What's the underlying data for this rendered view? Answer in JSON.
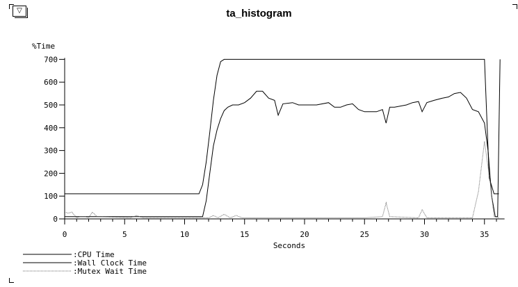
{
  "window": {
    "menu_glyph": "▽",
    "title": "ta_histogram"
  },
  "chart_data": {
    "type": "line",
    "title": "ta_histogram",
    "ylabel": "%Time",
    "xlabel": "Seconds",
    "xlim": [
      0,
      36.5
    ],
    "ylim": [
      0,
      700
    ],
    "xticks": [
      0,
      5,
      10,
      15,
      20,
      25,
      30,
      35
    ],
    "yticks": [
      0,
      100,
      200,
      300,
      400,
      500,
      600,
      700
    ],
    "grid": false,
    "legend_position": "bottom-left",
    "series": [
      {
        "name": ":CPU Time",
        "style": "solid",
        "color": "#000000",
        "x": [
          0,
          11.2,
          11.5,
          11.8,
          12.1,
          12.4,
          12.7,
          13.0,
          13.3,
          35.0,
          35.4,
          35.8,
          36.2
        ],
        "y": [
          110,
          110,
          150,
          250,
          380,
          520,
          630,
          690,
          700,
          700,
          180,
          110,
          110
        ]
      },
      {
        "name": ":Wall Clock Time",
        "style": "solid",
        "color": "#000000",
        "x": [
          0,
          11.5,
          11.8,
          12.1,
          12.4,
          12.7,
          13.0,
          13.3,
          13.6,
          14.0,
          14.5,
          15.0,
          15.5,
          16.0,
          16.5,
          17.0,
          17.5,
          17.8,
          18.2,
          19.0,
          19.5,
          20.0,
          21.0,
          22.0,
          22.5,
          23.0,
          23.5,
          24.0,
          24.5,
          25.0,
          26.0,
          26.5,
          26.8,
          27.1,
          27.5,
          28.5,
          29.0,
          29.5,
          29.8,
          30.2,
          30.8,
          31.5,
          32.0,
          32.5,
          33.0,
          33.5,
          34.0,
          34.5,
          35.0,
          35.3,
          35.6,
          35.9,
          36.1,
          36.3
        ],
        "y": [
          10,
          10,
          80,
          200,
          320,
          390,
          440,
          475,
          490,
          500,
          500,
          510,
          530,
          560,
          560,
          530,
          520,
          455,
          505,
          510,
          500,
          500,
          500,
          510,
          490,
          490,
          500,
          505,
          480,
          470,
          470,
          480,
          420,
          490,
          490,
          500,
          510,
          515,
          470,
          510,
          520,
          530,
          535,
          550,
          555,
          530,
          480,
          470,
          420,
          300,
          100,
          10,
          10,
          700
        ]
      },
      {
        "name": ":Mutex Wait Time",
        "style": "dotted",
        "color": "#666666",
        "x": [
          0,
          0.3,
          0.6,
          1.0,
          1.3,
          1.7,
          2.0,
          2.3,
          2.7,
          5.5,
          6.0,
          6.5,
          11.5,
          12.0,
          12.4,
          12.8,
          13.3,
          13.8,
          14.3,
          14.8,
          15.3,
          20.0,
          25.0,
          26.5,
          26.8,
          27.1,
          29.5,
          29.8,
          30.2,
          34.0,
          34.5,
          35.0,
          35.5,
          35.8,
          36.2
        ],
        "y": [
          30,
          25,
          30,
          5,
          10,
          10,
          5,
          30,
          10,
          5,
          15,
          5,
          5,
          5,
          15,
          5,
          20,
          5,
          15,
          5,
          5,
          5,
          5,
          10,
          70,
          10,
          5,
          40,
          5,
          5,
          120,
          340,
          150,
          10,
          5
        ]
      }
    ]
  }
}
